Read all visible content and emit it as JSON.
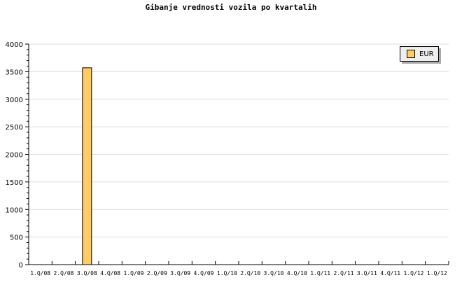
{
  "chart_data": {
    "type": "bar",
    "title": "Gibanje vrednosti vozila po kvartalih",
    "categories": [
      "1.Q/08",
      "2.Q/08",
      "3.Q/08",
      "4.Q/08",
      "1.Q/09",
      "2.Q/09",
      "3.Q/09",
      "4.Q/09",
      "1.Q/10",
      "2.Q/10",
      "3.Q/10",
      "4.Q/10",
      "1.Q/11",
      "2.Q/11",
      "3.Q/11",
      "4.Q/11",
      "1.Q/12",
      "1.Q/12"
    ],
    "series": [
      {
        "name": "EUR",
        "color": "#ffcc66",
        "values": [
          0,
          0,
          3570,
          0,
          0,
          0,
          0,
          0,
          0,
          0,
          0,
          0,
          0,
          0,
          0,
          0,
          0,
          0
        ]
      }
    ],
    "ylim": [
      0,
      4000
    ],
    "yticks": [
      0,
      500,
      1000,
      1500,
      2000,
      2500,
      3000,
      3500,
      4000
    ],
    "grid": true,
    "legend": "top-right",
    "xlabel": "",
    "ylabel": ""
  }
}
